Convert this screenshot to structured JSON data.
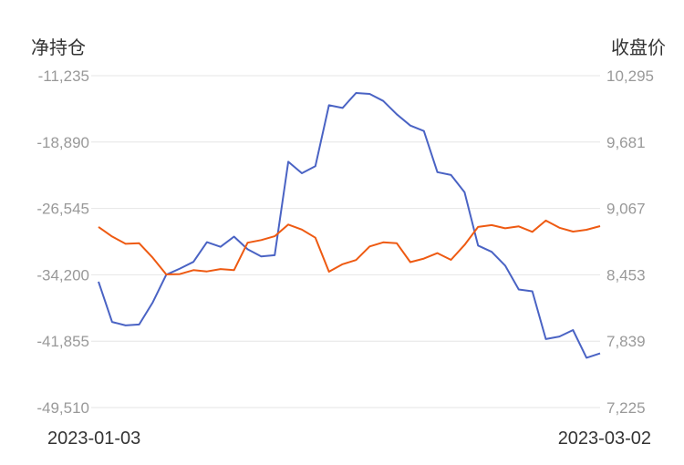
{
  "chart_data": {
    "type": "line",
    "left_axis_title": "净持仓",
    "right_axis_title": "收盘价",
    "x_start_label": "2023-01-03",
    "x_end_label": "2023-03-02",
    "left_axis": {
      "ticks": [
        "-11,235",
        "-18,890",
        "-26,545",
        "-34,200",
        "-41,855",
        "-49,510"
      ],
      "range": [
        -49510,
        -11235
      ]
    },
    "right_axis": {
      "ticks": [
        "10,295",
        "9,681",
        "9,067",
        "8,453",
        "7,839",
        "7,225"
      ],
      "range": [
        7225,
        10295
      ]
    },
    "grid": true,
    "series": [
      {
        "axis": "left",
        "color": "#4a63c4",
        "values": [
          -34990,
          -39640,
          -40040,
          -39930,
          -37380,
          -34190,
          -33490,
          -32710,
          -30440,
          -30970,
          -29790,
          -31260,
          -32090,
          -31940,
          -21160,
          -22490,
          -21680,
          -14640,
          -14960,
          -13230,
          -13340,
          -14150,
          -15680,
          -16990,
          -17620,
          -22360,
          -22690,
          -24680,
          -30820,
          -31550,
          -33140,
          -35890,
          -36100,
          -41610,
          -41320,
          -40570,
          -43770,
          -43260
        ]
      },
      {
        "axis": "right",
        "color": "#ee5a12",
        "values": [
          8896,
          8807,
          8740,
          8745,
          8611,
          8456,
          8460,
          8496,
          8484,
          8506,
          8496,
          8750,
          8774,
          8810,
          8918,
          8871,
          8796,
          8482,
          8551,
          8590,
          8715,
          8753,
          8746,
          8570,
          8603,
          8654,
          8591,
          8730,
          8896,
          8913,
          8883,
          8901,
          8850,
          8955,
          8888,
          8853,
          8870,
          8903
        ]
      }
    ]
  }
}
